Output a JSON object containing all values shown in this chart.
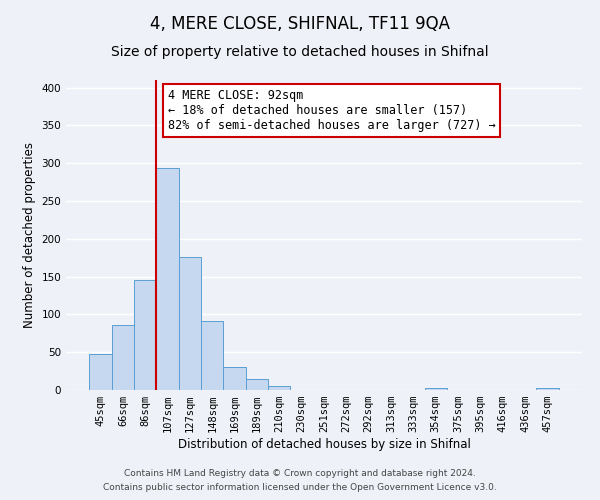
{
  "title": "4, MERE CLOSE, SHIFNAL, TF11 9QA",
  "subtitle": "Size of property relative to detached houses in Shifnal",
  "xlabel": "Distribution of detached houses by size in Shifnal",
  "ylabel": "Number of detached properties",
  "bar_labels": [
    "45sqm",
    "66sqm",
    "86sqm",
    "107sqm",
    "127sqm",
    "148sqm",
    "169sqm",
    "189sqm",
    "210sqm",
    "230sqm",
    "251sqm",
    "272sqm",
    "292sqm",
    "313sqm",
    "333sqm",
    "354sqm",
    "375sqm",
    "395sqm",
    "416sqm",
    "436sqm",
    "457sqm"
  ],
  "bar_values": [
    47,
    86,
    145,
    293,
    176,
    91,
    30,
    15,
    5,
    0,
    0,
    0,
    0,
    0,
    0,
    3,
    0,
    0,
    0,
    0,
    2
  ],
  "bar_color": "#c5d8f0",
  "bar_edge_color": "#5a9fd4",
  "ylim": [
    0,
    410
  ],
  "vline_x": 2.5,
  "vline_color": "#cc0000",
  "annotation_text": "4 MERE CLOSE: 92sqm\n← 18% of detached houses are smaller (157)\n82% of semi-detached houses are larger (727) →",
  "annotation_box_color": "#ffffff",
  "annotation_box_edge_color": "#cc0000",
  "footnote1": "Contains HM Land Registry data © Crown copyright and database right 2024.",
  "footnote2": "Contains public sector information licensed under the Open Government Licence v3.0.",
  "background_color": "#eef2f8",
  "grid_color": "#ffffff",
  "title_fontsize": 12,
  "subtitle_fontsize": 10,
  "axis_label_fontsize": 8.5,
  "tick_fontsize": 7.5,
  "annotation_fontsize": 8.5,
  "footnote_fontsize": 6.5
}
